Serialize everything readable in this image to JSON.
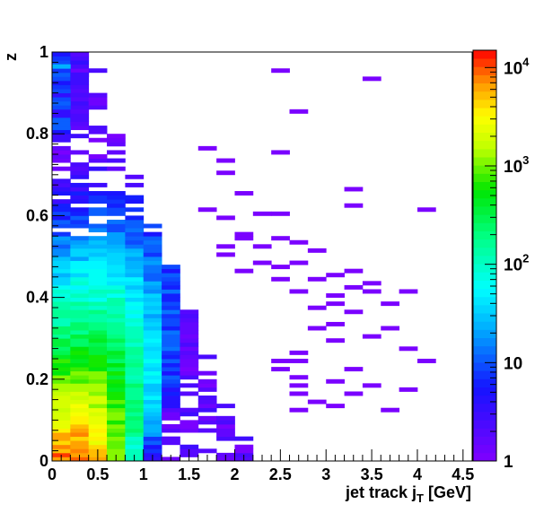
{
  "chart_data": {
    "type": "heatmap",
    "title": "",
    "xlabel": "jet track j",
    "xlabel_sub": "T",
    "xlabel_unit": " [GeV]",
    "ylabel": "z",
    "xlim": [
      0,
      4.6
    ],
    "ylim": [
      0,
      1
    ],
    "x_ticks": [
      "0",
      "0.5",
      "1",
      "1.5",
      "2",
      "2.5",
      "3",
      "3.5",
      "4",
      "4.5"
    ],
    "y_ticks": [
      "0",
      "0.2",
      "0.4",
      "0.6",
      "0.8",
      "1"
    ],
    "z_scale": "log",
    "zlim": [
      1,
      15000
    ],
    "colorbar_labels": [
      {
        "base": "1",
        "exp": ""
      },
      {
        "base": "10",
        "exp": ""
      },
      {
        "base": "10",
        "exp": "2"
      },
      {
        "base": "10",
        "exp": "3"
      },
      {
        "base": "10",
        "exp": "4"
      }
    ],
    "bin_width_x": 0.2,
    "bin_width_y": 0.01,
    "core_region": {
      "x_max": 2.2,
      "peak_x": 0.2,
      "peak_y": 0.02,
      "peak_count": 12000
    },
    "sparse_bins": [
      [
        3.4,
        0.93
      ],
      [
        2.6,
        0.85
      ],
      [
        2.4,
        0.95
      ],
      [
        2.4,
        0.75
      ],
      [
        1.6,
        0.76
      ],
      [
        1.8,
        0.73
      ],
      [
        1.8,
        0.7
      ],
      [
        2.0,
        0.65
      ],
      [
        3.2,
        0.66
      ],
      [
        4.0,
        0.61
      ],
      [
        3.2,
        0.62
      ],
      [
        1.6,
        0.61
      ],
      [
        2.2,
        0.6
      ],
      [
        1.8,
        0.59
      ],
      [
        2.4,
        0.6
      ],
      [
        2.0,
        0.55
      ],
      [
        2.0,
        0.54
      ],
      [
        2.4,
        0.54
      ],
      [
        1.8,
        0.52
      ],
      [
        2.2,
        0.52
      ],
      [
        1.8,
        0.5
      ],
      [
        2.6,
        0.53
      ],
      [
        2.8,
        0.51
      ],
      [
        2.6,
        0.48
      ],
      [
        2.2,
        0.48
      ],
      [
        2.4,
        0.47
      ],
      [
        2.0,
        0.46
      ],
      [
        2.4,
        0.44
      ],
      [
        2.6,
        0.41
      ],
      [
        2.8,
        0.44
      ],
      [
        3.0,
        0.45
      ],
      [
        3.2,
        0.46
      ],
      [
        3.4,
        0.43
      ],
      [
        3.0,
        0.4
      ],
      [
        3.2,
        0.42
      ],
      [
        3.0,
        0.38
      ],
      [
        3.2,
        0.36
      ],
      [
        3.6,
        0.38
      ],
      [
        3.4,
        0.41
      ],
      [
        3.8,
        0.41
      ],
      [
        2.8,
        0.37
      ],
      [
        3.0,
        0.33
      ],
      [
        2.8,
        0.32
      ],
      [
        3.0,
        0.29
      ],
      [
        3.4,
        0.3
      ],
      [
        3.6,
        0.32
      ],
      [
        3.8,
        0.27
      ],
      [
        4.0,
        0.24
      ],
      [
        3.2,
        0.22
      ],
      [
        3.0,
        0.19
      ],
      [
        3.4,
        0.18
      ],
      [
        3.8,
        0.17
      ],
      [
        3.2,
        0.16
      ],
      [
        3.6,
        0.12
      ],
      [
        3.0,
        0.13
      ],
      [
        2.6,
        0.12
      ],
      [
        2.8,
        0.14
      ],
      [
        2.6,
        0.18
      ],
      [
        2.6,
        0.16
      ],
      [
        2.6,
        0.2
      ],
      [
        2.6,
        0.24
      ],
      [
        2.4,
        0.24
      ],
      [
        2.4,
        0.22
      ],
      [
        2.6,
        0.26
      ]
    ]
  }
}
